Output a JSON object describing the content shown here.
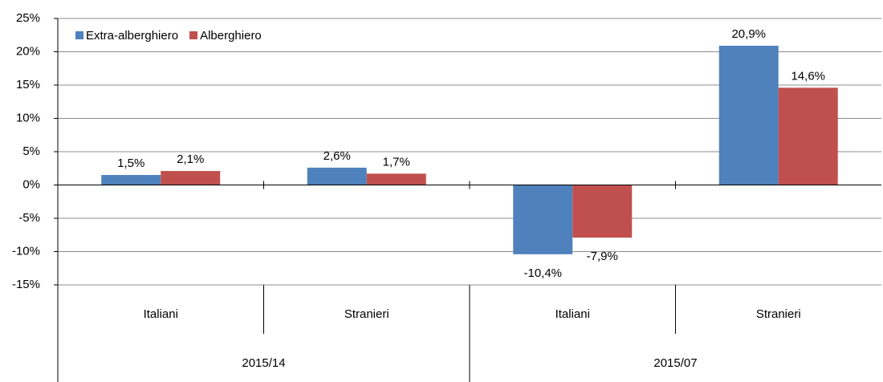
{
  "chart_data": {
    "type": "bar",
    "categories": [
      "Italiani",
      "Stranieri",
      "Italiani",
      "Stranieri"
    ],
    "category_groups": [
      "2015/14",
      "2015/07"
    ],
    "series": [
      {
        "name": "Extra-alberghiero",
        "color": "#4f81bd",
        "values": [
          1.5,
          2.6,
          -10.4,
          20.9
        ],
        "value_labels": [
          "1,5%",
          "2,6%",
          "-10,4%",
          "20,9%"
        ]
      },
      {
        "name": "Alberghiero",
        "color": "#c0504d",
        "values": [
          2.1,
          1.7,
          -7.9,
          14.6
        ],
        "value_labels": [
          "2,1%",
          "1,7%",
          "-7,9%",
          "14,6%"
        ]
      }
    ],
    "ylim": [
      -15,
      25
    ],
    "yticks": [
      {
        "value": -15,
        "label": "-15%"
      },
      {
        "value": -10,
        "label": "-10%"
      },
      {
        "value": -5,
        "label": "-5%"
      },
      {
        "value": 0,
        "label": "0%"
      },
      {
        "value": 5,
        "label": "5%"
      },
      {
        "value": 10,
        "label": "10%"
      },
      {
        "value": 15,
        "label": "15%"
      },
      {
        "value": 20,
        "label": "20%"
      },
      {
        "value": 25,
        "label": "25%"
      }
    ],
    "grid": true,
    "legend": "top-left"
  }
}
